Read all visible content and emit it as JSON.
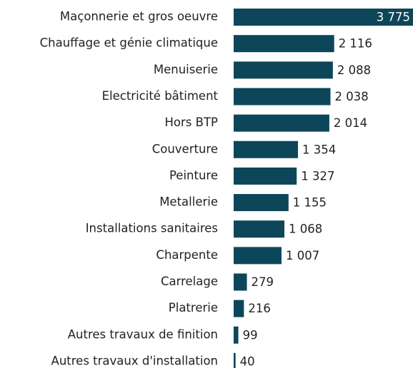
{
  "chart_data": {
    "type": "barh",
    "color": "#0e4659",
    "categories": [
      "Maçonnerie et gros oeuvre",
      "Chauffage et génie climatique",
      "Menuiserie",
      "Electricité bâtiment",
      "Hors BTP",
      "Couverture",
      "Peinture",
      "Metallerie",
      "Installations sanitaires",
      "Charpente",
      "Carrelage",
      "Platrerie",
      "Autres travaux de finition",
      "Autres travaux d'installation"
    ],
    "values": [
      3775,
      2116,
      2088,
      2038,
      2014,
      1354,
      1327,
      1155,
      1068,
      1007,
      279,
      216,
      99,
      40
    ],
    "value_labels": [
      "3 775",
      "2 116",
      "2 088",
      "2 038",
      "2 014",
      "1 354",
      "1 327",
      "1 155",
      "1 068",
      "1 007",
      "279",
      "216",
      "99",
      "40"
    ]
  }
}
